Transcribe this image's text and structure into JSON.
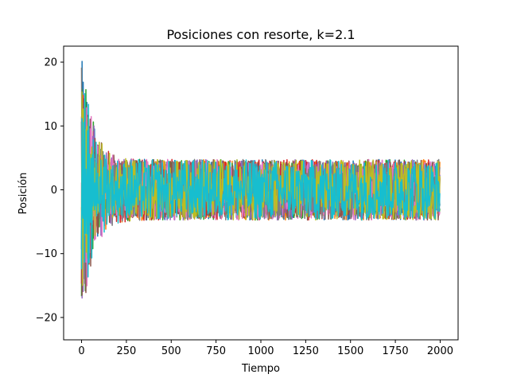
{
  "chart_data": {
    "type": "line",
    "title": "Posiciones con resorte, k=2.1",
    "xlabel": "Tiempo",
    "ylabel": "Posición",
    "xlim": [
      -100,
      2100
    ],
    "ylim": [
      -23.5,
      22.5
    ],
    "xticks": [
      0,
      250,
      500,
      750,
      1000,
      1250,
      1500,
      1750,
      2000
    ],
    "yticks": [
      -20,
      -10,
      0,
      10,
      20
    ],
    "xtick_labels": [
      "0",
      "250",
      "500",
      "750",
      "1000",
      "1250",
      "1500",
      "1750",
      "2000"
    ],
    "ytick_labels": [
      "−20",
      "−10",
      "0",
      "10",
      "20"
    ],
    "grid": false,
    "legend": "none",
    "n_series": 10,
    "x_range": [
      0,
      2000
    ],
    "initial_amplitude": 21,
    "steady_state_band": [
      -5,
      5
    ],
    "decay_time": 60,
    "colors": [
      "#1f77b4",
      "#ff7f0e",
      "#2ca02c",
      "#d62728",
      "#9467bd",
      "#8c564b",
      "#e377c2",
      "#7f7f7f",
      "#bcbd22",
      "#17becf"
    ]
  }
}
